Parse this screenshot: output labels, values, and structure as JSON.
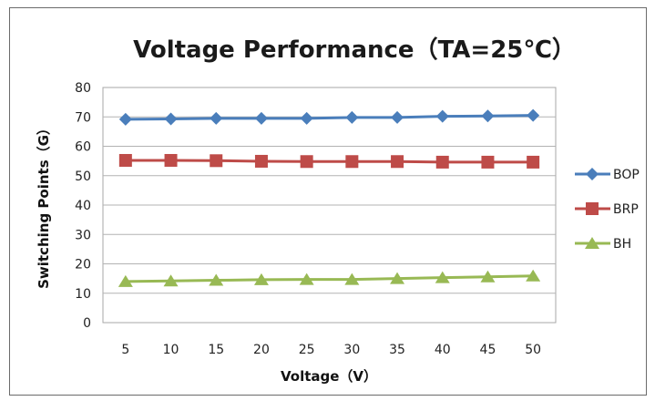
{
  "chart_data": {
    "type": "line",
    "title": "Voltage Performance（TA=25℃）",
    "xlabel": "Voltage（V）",
    "ylabel": "Switching Points（G）",
    "x": [
      5,
      10,
      15,
      20,
      25,
      30,
      35,
      40,
      45,
      50
    ],
    "ylim": [
      0,
      80
    ],
    "yticks": [
      0,
      10,
      20,
      30,
      40,
      50,
      60,
      70,
      80
    ],
    "grid": true,
    "legend_position": "right",
    "series": [
      {
        "name": "BOP",
        "color": "#4a7ebb",
        "marker": "diamond",
        "values": [
          69.2,
          69.3,
          69.5,
          69.5,
          69.5,
          69.8,
          69.8,
          70.2,
          70.3,
          70.5
        ]
      },
      {
        "name": "BRP",
        "color": "#be4b48",
        "marker": "square",
        "values": [
          55.2,
          55.2,
          55.1,
          54.9,
          54.8,
          54.8,
          54.8,
          54.6,
          54.6,
          54.6
        ]
      },
      {
        "name": "BH",
        "color": "#98b954",
        "marker": "triangle",
        "values": [
          14.0,
          14.2,
          14.4,
          14.6,
          14.7,
          14.7,
          15.0,
          15.3,
          15.6,
          15.9
        ]
      }
    ]
  }
}
